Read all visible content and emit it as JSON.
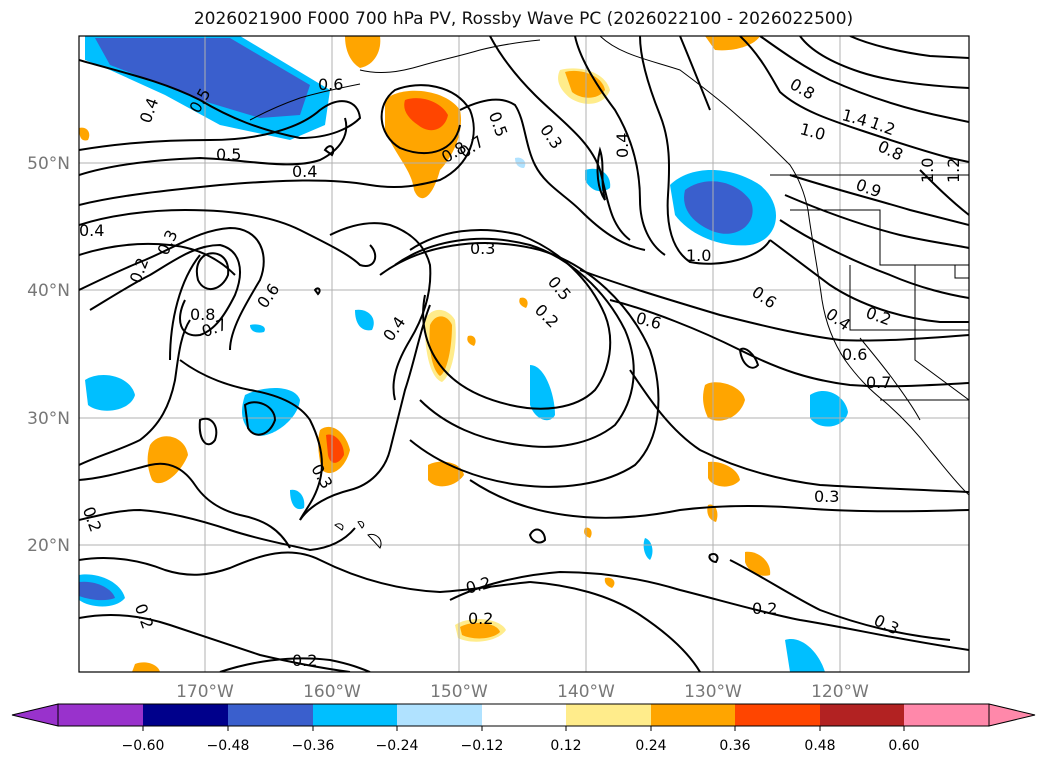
{
  "title": "2026021900 F000 700 hPa PV, Rossby Wave PC (2026022100 - 2026022500)",
  "lat_ticks": [
    "50°N",
    "40°N",
    "30°N",
    "20°N"
  ],
  "lon_ticks": [
    "170°W",
    "160°W",
    "150°W",
    "140°W",
    "130°W",
    "120°W"
  ],
  "colorbar": {
    "ticks": [
      "−0.60",
      "−0.48",
      "−0.36",
      "−0.24",
      "−0.12",
      "0.12",
      "0.24",
      "0.36",
      "0.48",
      "0.60"
    ],
    "colors": [
      "#9932cc",
      "#00008b",
      "#3a5fcd",
      "#00bfff",
      "#b0e2ff",
      "#ffffff",
      "#ffec8b",
      "#ffa500",
      "#ff4500",
      "#b22222",
      "#ff88aa"
    ]
  },
  "contour_labels": [
    "0.4",
    "0.5",
    "0.6",
    "0.5",
    "0.4",
    "0.4",
    "0.3",
    "0.2",
    "0.8",
    "0.7",
    "0.6",
    "0.3",
    "0.2",
    "0.2",
    "0.2",
    "0.8",
    "0.7",
    "0.5",
    "0.3",
    "0.4",
    "0.5",
    "0.2",
    "0.3",
    "0.4",
    "1.0",
    "0.6",
    "0.6",
    "0.4",
    "0.2",
    "0.6",
    "0.7",
    "0.3",
    "0.2",
    "0.3",
    "1.0",
    "1.4",
    "1.2",
    "0.8",
    "0.9",
    "1.0",
    "1.2",
    "0.8"
  ],
  "colors": {
    "ocean": "#ffffff",
    "contour": "#000000",
    "grid": "#b0b0b0",
    "tick_label": "#777777"
  }
}
